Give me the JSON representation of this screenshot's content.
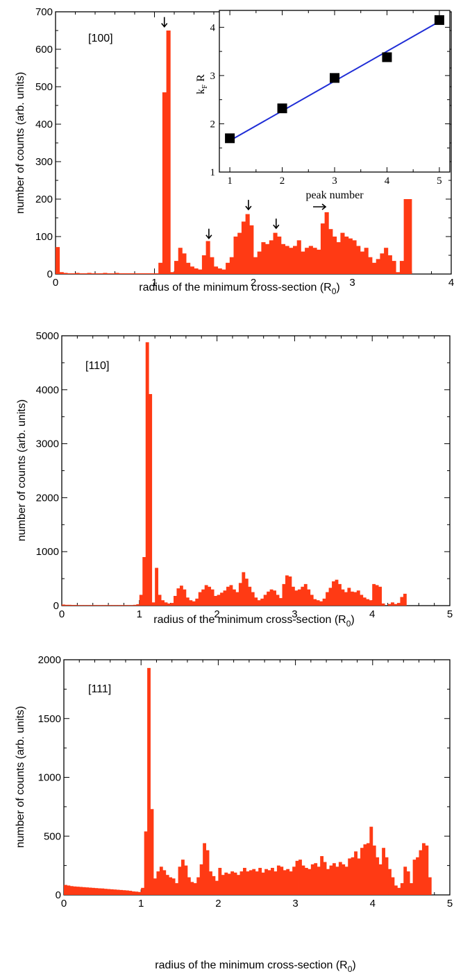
{
  "chart_data": [
    {
      "type": "bar",
      "panel_label": "[100]",
      "xlabel_main": "radius of the minimum cross-section (R",
      "xlabel_sub": "0",
      "xlabel_tail": ")",
      "ylabel": "number of counts (arb. units)",
      "xlim": [
        0,
        4
      ],
      "ylim": [
        0,
        700
      ],
      "xticks": [
        "0",
        "1",
        "2",
        "3",
        "4"
      ],
      "yticks": [
        "0",
        "100",
        "200",
        "300",
        "400",
        "500",
        "600",
        "700"
      ],
      "bin_width": 0.04,
      "bin_starts": [
        0.0,
        0.04,
        0.08,
        0.12,
        0.16,
        0.2,
        0.24,
        0.28,
        0.32,
        0.36,
        0.4,
        0.44,
        0.48,
        0.52,
        0.56,
        0.6,
        0.64,
        0.68,
        0.72,
        0.76,
        0.8,
        0.84,
        0.88,
        0.92,
        0.96,
        1.0,
        1.04,
        1.08,
        1.12,
        1.16,
        1.2,
        1.24,
        1.28,
        1.32,
        1.36,
        1.4,
        1.44,
        1.48,
        1.52,
        1.56,
        1.6,
        1.64,
        1.68,
        1.72,
        1.76,
        1.8,
        1.84,
        1.88,
        1.92,
        1.96,
        2.0,
        2.04,
        2.08,
        2.12,
        2.16,
        2.2,
        2.24,
        2.28,
        2.32,
        2.36,
        2.4,
        2.44,
        2.48,
        2.52,
        2.56,
        2.6,
        2.64,
        2.68,
        2.72,
        2.76,
        2.8,
        2.84,
        2.88,
        2.92,
        2.96,
        3.0,
        3.04,
        3.08,
        3.12,
        3.16,
        3.2,
        3.24,
        3.28,
        3.32,
        3.36,
        3.4,
        3.44,
        3.48,
        3.52,
        3.56,
        3.6
      ],
      "values": [
        72,
        5,
        3,
        2,
        2,
        3,
        2,
        2,
        3,
        2,
        2,
        2,
        3,
        2,
        2,
        3,
        2,
        2,
        2,
        2,
        2,
        2,
        2,
        2,
        2,
        2,
        30,
        485,
        650,
        5,
        35,
        70,
        55,
        30,
        20,
        15,
        12,
        50,
        88,
        45,
        20,
        15,
        12,
        30,
        45,
        100,
        110,
        140,
        160,
        130,
        45,
        60,
        85,
        80,
        90,
        110,
        100,
        80,
        75,
        70,
        75,
        90,
        60,
        70,
        75,
        70,
        65,
        135,
        165,
        120,
        100,
        85,
        110,
        100,
        95,
        90,
        75,
        60,
        70,
        45,
        30,
        40,
        55,
        70,
        50,
        35,
        5,
        35,
        200,
        200,
        0
      ],
      "annotations": [
        {
          "type": "arrow-down",
          "x": 1.1,
          "y": 660
        },
        {
          "type": "arrow-down",
          "x": 1.55,
          "y": 95
        },
        {
          "type": "arrow-down",
          "x": 1.95,
          "y": 172
        },
        {
          "type": "arrow-down",
          "x": 2.23,
          "y": 122
        },
        {
          "type": "arrow-right",
          "x": 2.73,
          "y": 172
        }
      ],
      "inset": {
        "type": "line+scatter",
        "xlabel": "peak number",
        "ylabel_k": "k",
        "ylabel_sub": "F",
        "ylabel_tail": " R",
        "xlim": [
          0.8,
          5.2
        ],
        "ylim": [
          1,
          4.35
        ],
        "xticks": [
          "1",
          "2",
          "3",
          "4",
          "5"
        ],
        "yticks": [
          "1",
          "2",
          "3",
          "4"
        ],
        "points": [
          [
            1,
            1.7
          ],
          [
            2,
            2.32
          ],
          [
            3,
            2.95
          ],
          [
            4,
            3.38
          ],
          [
            5,
            4.15
          ]
        ],
        "fit": [
          [
            1,
            1.65
          ],
          [
            5,
            4.12
          ]
        ],
        "line_color": "#1f2dd6",
        "marker_color": "#000000"
      }
    },
    {
      "type": "bar",
      "panel_label": "[110]",
      "xlabel_main": "radius of the minimum cross-section (R",
      "xlabel_sub": "0",
      "xlabel_tail": ")",
      "ylabel": "number of counts (arb. units)",
      "xlim": [
        0,
        5
      ],
      "ylim": [
        0,
        5000
      ],
      "xticks": [
        "0",
        "1",
        "2",
        "3",
        "4",
        "5"
      ],
      "yticks": [
        "0",
        "1000",
        "2000",
        "3000",
        "4000",
        "5000"
      ],
      "bin_width": 0.04,
      "bin_starts": [
        0.0,
        0.04,
        0.08,
        0.12,
        0.16,
        0.2,
        0.24,
        0.28,
        0.32,
        0.36,
        0.4,
        0.44,
        0.48,
        0.52,
        0.56,
        0.6,
        0.64,
        0.68,
        0.72,
        0.76,
        0.8,
        0.84,
        0.88,
        0.92,
        0.96,
        1.0,
        1.04,
        1.08,
        1.12,
        1.16,
        1.2,
        1.24,
        1.28,
        1.32,
        1.36,
        1.4,
        1.44,
        1.48,
        1.52,
        1.56,
        1.6,
        1.64,
        1.68,
        1.72,
        1.76,
        1.8,
        1.84,
        1.88,
        1.92,
        1.96,
        2.0,
        2.04,
        2.08,
        2.12,
        2.16,
        2.2,
        2.24,
        2.28,
        2.32,
        2.36,
        2.4,
        2.44,
        2.48,
        2.52,
        2.56,
        2.6,
        2.64,
        2.68,
        2.72,
        2.76,
        2.8,
        2.84,
        2.88,
        2.92,
        2.96,
        3.0,
        3.04,
        3.08,
        3.12,
        3.16,
        3.2,
        3.24,
        3.28,
        3.32,
        3.36,
        3.4,
        3.44,
        3.48,
        3.52,
        3.56,
        3.6,
        3.64,
        3.68,
        3.72,
        3.76,
        3.8,
        3.84,
        3.88,
        3.92,
        3.96,
        4.0,
        4.04,
        4.08,
        4.12,
        4.16,
        4.2,
        4.24,
        4.28,
        4.32,
        4.36,
        4.4,
        4.44,
        4.48,
        4.52
      ],
      "values": [
        20,
        15,
        15,
        12,
        12,
        10,
        10,
        10,
        10,
        10,
        10,
        10,
        10,
        10,
        10,
        10,
        10,
        10,
        10,
        10,
        10,
        10,
        10,
        15,
        25,
        200,
        900,
        4880,
        3920,
        60,
        700,
        200,
        100,
        60,
        40,
        50,
        180,
        320,
        370,
        300,
        150,
        100,
        80,
        130,
        250,
        300,
        380,
        350,
        300,
        180,
        200,
        240,
        280,
        350,
        380,
        300,
        250,
        420,
        620,
        500,
        350,
        250,
        150,
        100,
        130,
        200,
        260,
        300,
        280,
        200,
        140,
        400,
        560,
        540,
        350,
        280,
        300,
        350,
        400,
        300,
        200,
        120,
        100,
        80,
        130,
        250,
        330,
        450,
        480,
        400,
        300,
        250,
        330,
        260,
        250,
        280,
        200,
        150,
        120,
        100,
        400,
        380,
        350,
        40,
        0,
        30,
        60,
        30,
        50,
        160,
        220,
        0,
        0
      ],
      "annotations": []
    },
    {
      "type": "bar",
      "panel_label": "[111]",
      "xlabel_main": "radius of the minimum cross-section (R",
      "xlabel_sub": "0",
      "xlabel_tail": ")",
      "ylabel": "number of counts (arb. units)",
      "xlim": [
        0,
        5
      ],
      "ylim": [
        0,
        2000
      ],
      "xticks": [
        "0",
        "1",
        "2",
        "3",
        "4",
        "5"
      ],
      "yticks": [
        "0",
        "500",
        "1000",
        "1500",
        "2000"
      ],
      "bin_width": 0.04,
      "bin_starts": [
        0.0,
        0.04,
        0.08,
        0.12,
        0.16,
        0.2,
        0.24,
        0.28,
        0.32,
        0.36,
        0.4,
        0.44,
        0.48,
        0.52,
        0.56,
        0.6,
        0.64,
        0.68,
        0.72,
        0.76,
        0.8,
        0.84,
        0.88,
        0.92,
        0.96,
        1.0,
        1.04,
        1.08,
        1.12,
        1.16,
        1.2,
        1.24,
        1.28,
        1.32,
        1.36,
        1.4,
        1.44,
        1.48,
        1.52,
        1.56,
        1.6,
        1.64,
        1.68,
        1.72,
        1.76,
        1.8,
        1.84,
        1.88,
        1.92,
        1.96,
        2.0,
        2.04,
        2.08,
        2.12,
        2.16,
        2.2,
        2.24,
        2.28,
        2.32,
        2.36,
        2.4,
        2.44,
        2.48,
        2.52,
        2.56,
        2.6,
        2.64,
        2.68,
        2.72,
        2.76,
        2.8,
        2.84,
        2.88,
        2.92,
        2.96,
        3.0,
        3.04,
        3.08,
        3.12,
        3.16,
        3.2,
        3.24,
        3.28,
        3.32,
        3.36,
        3.4,
        3.44,
        3.48,
        3.52,
        3.56,
        3.6,
        3.64,
        3.68,
        3.72,
        3.76,
        3.8,
        3.84,
        3.88,
        3.92,
        3.96,
        4.0,
        4.04,
        4.08,
        4.12,
        4.16,
        4.2,
        4.24,
        4.28,
        4.32,
        4.36,
        4.4,
        4.44,
        4.48,
        4.52,
        4.56,
        4.6,
        4.64,
        4.68,
        4.72
      ],
      "values": [
        85,
        80,
        75,
        72,
        70,
        68,
        66,
        64,
        62,
        60,
        58,
        56,
        55,
        52,
        50,
        48,
        46,
        44,
        42,
        40,
        38,
        35,
        30,
        28,
        25,
        60,
        540,
        1930,
        730,
        140,
        200,
        240,
        210,
        170,
        150,
        140,
        100,
        240,
        300,
        250,
        150,
        110,
        100,
        150,
        260,
        440,
        380,
        200,
        160,
        120,
        230,
        170,
        190,
        180,
        200,
        190,
        170,
        200,
        230,
        200,
        210,
        220,
        200,
        230,
        190,
        220,
        210,
        230,
        200,
        250,
        240,
        210,
        220,
        200,
        240,
        290,
        300,
        250,
        230,
        220,
        260,
        270,
        240,
        330,
        280,
        220,
        250,
        270,
        240,
        280,
        260,
        240,
        310,
        320,
        370,
        310,
        400,
        430,
        440,
        580,
        420,
        320,
        260,
        400,
        320,
        220,
        150,
        80,
        60,
        100,
        240,
        200,
        100,
        300,
        320,
        380,
        440,
        420,
        150
      ],
      "annotations": []
    }
  ]
}
